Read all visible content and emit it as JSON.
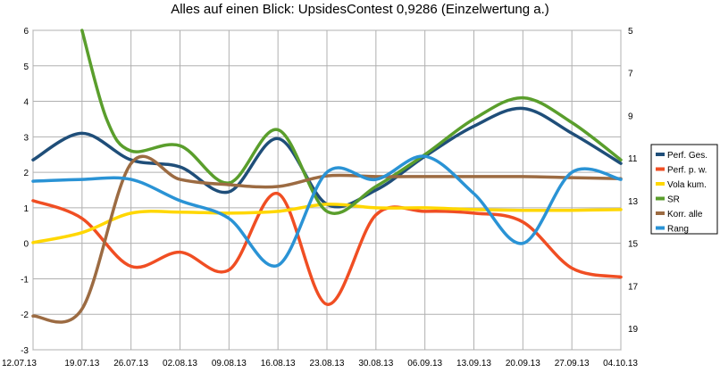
{
  "chart_data": {
    "type": "line",
    "title": "Alles auf einen Blick: UpsidesContest 0,9286 (Einzelwertung a.)",
    "categories": [
      "12.07.13",
      "19.07.13",
      "26.07.13",
      "02.08.13",
      "09.08.13",
      "16.08.13",
      "23.08.13",
      "30.08.13",
      "06.09.13",
      "13.09.13",
      "20.09.13",
      "27.09.13",
      "04.10.13"
    ],
    "ylim": [
      -3,
      6
    ],
    "y_ticks": [
      -3,
      -2,
      -1,
      0,
      1,
      2,
      3,
      4,
      5,
      6
    ],
    "y2lim": [
      5,
      20
    ],
    "y2_reversed": true,
    "y2_ticks": [
      5,
      7,
      9,
      11,
      13,
      15,
      17,
      19
    ],
    "grid": true,
    "legend_position": "right",
    "series": [
      {
        "name": "Perf. Ges.",
        "color": "#1f4e79",
        "axis": "left",
        "points": [
          [
            0,
            2.35
          ],
          [
            1,
            3.1
          ],
          [
            2,
            2.35
          ],
          [
            3,
            2.15
          ],
          [
            4,
            1.45
          ],
          [
            5,
            2.95
          ],
          [
            6,
            1.1
          ],
          [
            7,
            1.5
          ],
          [
            8,
            2.45
          ],
          [
            9,
            3.3
          ],
          [
            10,
            3.8
          ],
          [
            11,
            3.1
          ],
          [
            12,
            2.25
          ]
        ]
      },
      {
        "name": "Perf. p. w.",
        "color": "#f04e23",
        "axis": "left",
        "points": [
          [
            0,
            1.2
          ],
          [
            1,
            0.7
          ],
          [
            2,
            -0.65
          ],
          [
            3,
            -0.25
          ],
          [
            4,
            -0.75
          ],
          [
            5,
            1.4
          ],
          [
            6,
            -1.72
          ],
          [
            7,
            0.8
          ],
          [
            8,
            0.9
          ],
          [
            9,
            0.85
          ],
          [
            10,
            0.6
          ],
          [
            11,
            -0.7
          ],
          [
            12,
            -0.95
          ]
        ]
      },
      {
        "name": "Vola kum.",
        "color": "#ffd700",
        "axis": "left",
        "points": [
          [
            0,
            0.02
          ],
          [
            1,
            0.3
          ],
          [
            2,
            0.85
          ],
          [
            3,
            0.88
          ],
          [
            4,
            0.85
          ],
          [
            5,
            0.9
          ],
          [
            6,
            1.1
          ],
          [
            7,
            1.0
          ],
          [
            8,
            1.0
          ],
          [
            9,
            0.95
          ],
          [
            10,
            0.93
          ],
          [
            11,
            0.93
          ],
          [
            12,
            0.95
          ]
        ]
      },
      {
        "name": "SR",
        "color": "#5a9e2c",
        "axis": "left",
        "points": [
          [
            1,
            6.0
          ],
          [
            1.5,
            3.5
          ],
          [
            2,
            2.6
          ],
          [
            3,
            2.75
          ],
          [
            4,
            1.7
          ],
          [
            5,
            3.2
          ],
          [
            6,
            0.9
          ],
          [
            7,
            1.6
          ],
          [
            8,
            2.5
          ],
          [
            9,
            3.5
          ],
          [
            10,
            4.1
          ],
          [
            11,
            3.4
          ],
          [
            12,
            2.35
          ]
        ]
      },
      {
        "name": "Korr. alle",
        "color": "#9c6b42",
        "axis": "left",
        "points": [
          [
            0,
            -2.05
          ],
          [
            1,
            -1.85
          ],
          [
            2,
            2.25
          ],
          [
            3,
            1.8
          ],
          [
            4,
            1.65
          ],
          [
            5,
            1.6
          ],
          [
            6,
            1.9
          ],
          [
            7,
            1.88
          ],
          [
            8,
            1.88
          ],
          [
            9,
            1.88
          ],
          [
            10,
            1.88
          ],
          [
            11,
            1.85
          ],
          [
            12,
            1.82
          ]
        ]
      },
      {
        "name": "Rang",
        "color": "#2a93d5",
        "axis": "left",
        "points": [
          [
            0,
            1.75
          ],
          [
            1,
            1.8
          ],
          [
            2,
            1.8
          ],
          [
            3,
            1.2
          ],
          [
            4,
            0.7
          ],
          [
            5,
            -0.62
          ],
          [
            6,
            2.0
          ],
          [
            7,
            1.8
          ],
          [
            8,
            2.45
          ],
          [
            9,
            1.4
          ],
          [
            10,
            0.0
          ],
          [
            11,
            2.0
          ],
          [
            12,
            1.8
          ]
        ]
      }
    ]
  }
}
